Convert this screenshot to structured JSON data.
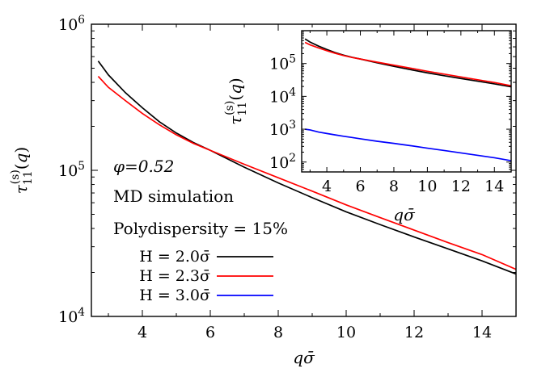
{
  "chart_data": [
    {
      "type": "line",
      "panel": "main",
      "xlabel": "qσ̄",
      "ylabel": "τ₁₁⁽ˢ⁾(q)",
      "xlim": [
        2.5,
        15
      ],
      "ylim": [
        10000,
        1000000
      ],
      "yscale": "log",
      "x_ticks": [
        4,
        6,
        8,
        10,
        12,
        14
      ],
      "y_ticks": [
        {
          "value": 10000,
          "base": "10",
          "exp": "4"
        },
        {
          "value": 100000,
          "base": "10",
          "exp": "5"
        },
        {
          "value": 1000000,
          "base": "10",
          "exp": "6"
        }
      ],
      "annotations": [
        "φ=0.52",
        "MD simulation",
        "Polydispersity = 15%"
      ],
      "legend": [
        {
          "label": "H = 2.0σ̄",
          "color": "#000000"
        },
        {
          "label": "H = 2.3σ̄",
          "color": "#ff0000"
        },
        {
          "label": "H = 3.0σ̄",
          "color": "#0000ff"
        }
      ],
      "x": [
        2.7,
        3,
        3.5,
        4,
        4.5,
        5,
        5.5,
        6,
        7,
        8,
        9,
        10,
        11,
        12,
        13,
        14,
        15
      ],
      "series": [
        {
          "name": "H = 2.0σ̄",
          "color": "#000000",
          "values": [
            560000,
            450000,
            340000,
            268000,
            215000,
            180000,
            155000,
            137000,
            105000,
            82000,
            65000,
            52000,
            42500,
            35000,
            29000,
            24000,
            19500
          ]
        },
        {
          "name": "H = 2.3σ̄",
          "color": "#ff0000",
          "values": [
            440000,
            370000,
            300000,
            245000,
            205000,
            175000,
            153000,
            137000,
            110000,
            89000,
            72000,
            58000,
            47500,
            39000,
            32000,
            26500,
            21000
          ]
        }
      ]
    },
    {
      "type": "line",
      "panel": "inset",
      "xlabel": "qσ̄",
      "ylabel": "τ₁₁⁽ˢ⁾(q)",
      "xlim": [
        2.5,
        15
      ],
      "ylim": [
        50,
        1000000
      ],
      "yscale": "log",
      "x_ticks": [
        4,
        6,
        8,
        10,
        12,
        14
      ],
      "y_ticks": [
        {
          "value": 100,
          "base": "10",
          "exp": "2"
        },
        {
          "value": 1000,
          "base": "10",
          "exp": "3"
        },
        {
          "value": 10000,
          "base": "10",
          "exp": "4"
        },
        {
          "value": 100000,
          "base": "10",
          "exp": "5"
        }
      ],
      "x": [
        2.7,
        3,
        3.5,
        4,
        4.5,
        5,
        5.5,
        6,
        7,
        8,
        9,
        10,
        11,
        12,
        13,
        14,
        15
      ],
      "series": [
        {
          "name": "H = 2.0σ̄",
          "color": "#000000",
          "values": [
            560000,
            450000,
            340000,
            268000,
            215000,
            180000,
            155000,
            137000,
            105000,
            82000,
            65000,
            52000,
            42500,
            35000,
            29000,
            24000,
            19500
          ]
        },
        {
          "name": "H = 2.3σ̄",
          "color": "#ff0000",
          "values": [
            440000,
            370000,
            300000,
            245000,
            205000,
            175000,
            153000,
            137000,
            110000,
            89000,
            72000,
            58000,
            47500,
            39000,
            32000,
            26500,
            21000
          ]
        },
        {
          "name": "H = 3.0σ̄",
          "color": "#0000ff",
          "values": [
            1000,
            950,
            820,
            740,
            670,
            610,
            560,
            510,
            430,
            370,
            315,
            265,
            225,
            190,
            160,
            135,
            110
          ]
        }
      ]
    }
  ]
}
